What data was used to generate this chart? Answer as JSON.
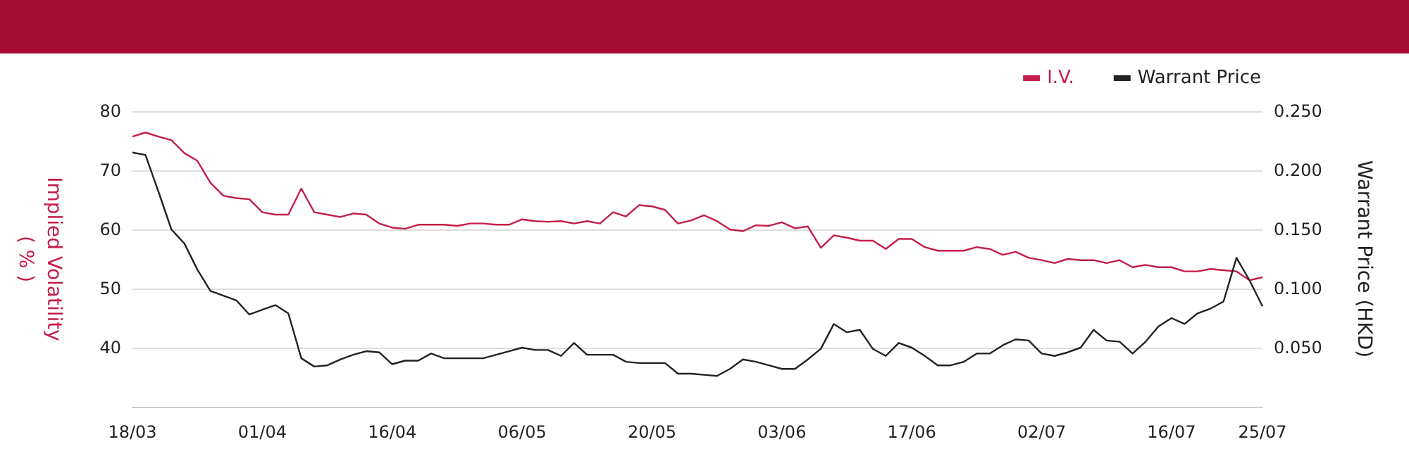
{
  "chart_data": {
    "type": "line",
    "categories": [
      "18/03",
      null,
      null,
      null,
      null,
      null,
      null,
      null,
      null,
      null,
      "01/04",
      null,
      null,
      null,
      null,
      null,
      null,
      null,
      null,
      null,
      "16/04",
      null,
      null,
      null,
      null,
      null,
      null,
      null,
      null,
      null,
      "06/05",
      null,
      null,
      null,
      null,
      null,
      null,
      null,
      null,
      null,
      "20/05",
      null,
      null,
      null,
      null,
      null,
      null,
      null,
      null,
      null,
      "03/06",
      null,
      null,
      null,
      null,
      null,
      null,
      null,
      null,
      null,
      "17/06",
      null,
      null,
      null,
      null,
      null,
      null,
      null,
      null,
      null,
      "02/07",
      null,
      null,
      null,
      null,
      null,
      null,
      null,
      null,
      null,
      "16/07",
      null,
      null,
      null,
      null,
      null,
      null,
      "25/07"
    ],
    "series": [
      {
        "name": "I.V.",
        "color": "#c41e48",
        "values": [
          75.7,
          76.4,
          75.7,
          75.1,
          72.9,
          71.6,
          67.9,
          65.7,
          65.3,
          65.1,
          62.9,
          62.5,
          62.5,
          66.9,
          62.9,
          62.5,
          62.1,
          62.7,
          62.5,
          61.0,
          60.3,
          60.1,
          60.8,
          60.8,
          60.8,
          60.6,
          61.0,
          61.0,
          60.8,
          60.8,
          61.7,
          61.4,
          61.3,
          61.4,
          61.0,
          61.4,
          61.0,
          62.9,
          62.2,
          64.1,
          63.9,
          63.3,
          61.0,
          61.5,
          62.4,
          61.4,
          60.0,
          59.7,
          60.7,
          60.6,
          61.2,
          60.2,
          60.5,
          56.9,
          59.0,
          58.6,
          58.1,
          58.1,
          56.7,
          58.4,
          58.4,
          57.0,
          56.4,
          56.4,
          56.4,
          57.0,
          56.7,
          55.7,
          56.2,
          55.2,
          54.8,
          54.3,
          55.0,
          54.8,
          54.8,
          54.3,
          54.8,
          53.6,
          54.0,
          53.6,
          53.6,
          52.9,
          52.9,
          53.3,
          53.1,
          52.9,
          51.4,
          51.9
        ]
      },
      {
        "name": "Warrant Price",
        "color": "#222222",
        "axis": "y2",
        "values": [
          0.215,
          0.213,
          0.182,
          0.15,
          0.138,
          0.116,
          0.098,
          0.094,
          0.09,
          0.078,
          0.082,
          0.086,
          0.079,
          0.041,
          0.034,
          0.035,
          0.04,
          0.044,
          0.047,
          0.046,
          0.036,
          0.039,
          0.039,
          0.045,
          0.041,
          0.041,
          0.041,
          0.041,
          0.044,
          0.047,
          0.05,
          0.048,
          0.048,
          0.043,
          0.054,
          0.044,
          0.044,
          0.044,
          0.038,
          0.037,
          0.037,
          0.037,
          0.028,
          0.028,
          0.027,
          0.026,
          0.032,
          0.04,
          0.038,
          0.035,
          0.032,
          0.032,
          0.04,
          0.049,
          0.07,
          0.063,
          0.065,
          0.049,
          0.043,
          0.054,
          0.05,
          0.043,
          0.035,
          0.035,
          0.038,
          0.045,
          0.045,
          0.052,
          0.057,
          0.056,
          0.045,
          0.043,
          0.046,
          0.05,
          0.065,
          0.056,
          0.055,
          0.045,
          0.055,
          0.068,
          0.075,
          0.07,
          0.079,
          0.083,
          0.089,
          0.126,
          0.107,
          0.085
        ]
      }
    ],
    "ylabel": "Implied Volatility\n( % )",
    "y2label": "Warrant Price (HKD)",
    "ylim": [
      30,
      80
    ],
    "yticks": [
      40,
      50,
      60,
      70,
      80
    ],
    "y2lim": [
      0,
      0.25
    ],
    "y2ticks": [
      {
        "value": 0.05,
        "label": "0.050"
      },
      {
        "value": 0.1,
        "label": "0.100"
      },
      {
        "value": 0.15,
        "label": "0.150"
      },
      {
        "value": 0.2,
        "label": "0.200"
      },
      {
        "value": 0.25,
        "label": "0.250"
      }
    ],
    "grid": "y",
    "legend": "top right",
    "marker": "none",
    "line_style": "solid"
  }
}
